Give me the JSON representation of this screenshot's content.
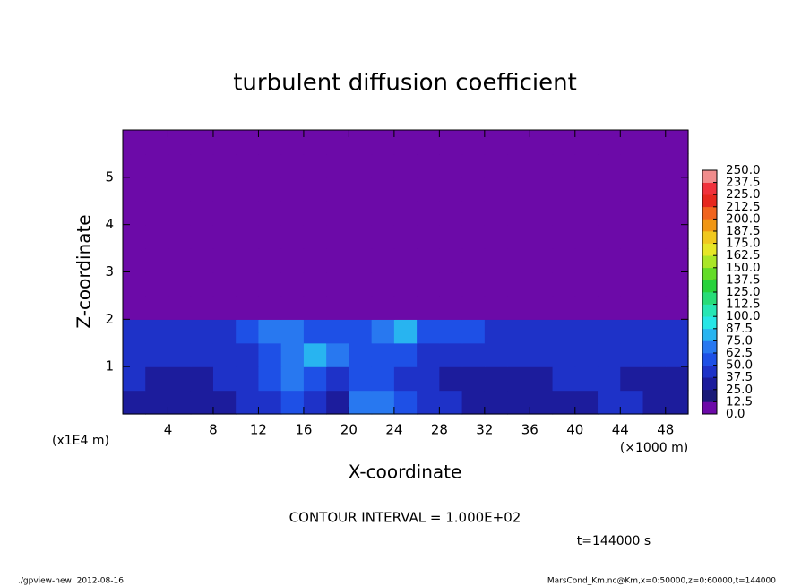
{
  "chart_data": {
    "type": "heatmap",
    "title": "turbulent diffusion coefficient",
    "xlabel": "X-coordinate",
    "ylabel": "Z-coordinate",
    "x_unit": "(×1000 m)",
    "y_unit": "(x1E4 m)",
    "xlim": [
      0,
      50
    ],
    "xticks": [
      4,
      8,
      12,
      16,
      20,
      24,
      28,
      32,
      36,
      40,
      44,
      48
    ],
    "ylim": [
      0,
      6
    ],
    "yticks": [
      1,
      2,
      3,
      4,
      5
    ],
    "values": [
      [
        35,
        30,
        30,
        32,
        35,
        38,
        45,
        50,
        40,
        35,
        70,
        65,
        55,
        45,
        40,
        35,
        30,
        30,
        30,
        35,
        30,
        45,
        40,
        35,
        35
      ],
      [
        40,
        35,
        35,
        35,
        38,
        45,
        55,
        65,
        55,
        45,
        50,
        50,
        45,
        40,
        35,
        35,
        35,
        35,
        35,
        40,
        40,
        40,
        35,
        35,
        35
      ],
      [
        40,
        45,
        40,
        38,
        40,
        45,
        55,
        70,
        80,
        70,
        55,
        60,
        55,
        45,
        40,
        40,
        40,
        40,
        40,
        40,
        40,
        40,
        40,
        40,
        40
      ],
      [
        45,
        45,
        42,
        40,
        45,
        55,
        65,
        70,
        60,
        55,
        55,
        70,
        75,
        60,
        50,
        50,
        45,
        45,
        45,
        45,
        45,
        45,
        45,
        45,
        45
      ],
      [
        0,
        0,
        0,
        0,
        0,
        0,
        0,
        0,
        0,
        0,
        0,
        0,
        0,
        0,
        0,
        0,
        0,
        0,
        0,
        0,
        0,
        0,
        0,
        0,
        0
      ],
      [
        0,
        0,
        0,
        0,
        0,
        0,
        0,
        0,
        0,
        0,
        0,
        0,
        0,
        0,
        0,
        0,
        0,
        0,
        0,
        0,
        0,
        0,
        0,
        0,
        0
      ],
      [
        0,
        0,
        0,
        0,
        0,
        0,
        0,
        0,
        0,
        0,
        0,
        0,
        0,
        0,
        0,
        0,
        0,
        0,
        0,
        0,
        0,
        0,
        0,
        0,
        0
      ],
      [
        0,
        0,
        0,
        0,
        0,
        0,
        0,
        0,
        0,
        0,
        0,
        0,
        0,
        0,
        0,
        0,
        0,
        0,
        0,
        0,
        0,
        0,
        0,
        0,
        0
      ],
      [
        0,
        0,
        0,
        0,
        0,
        0,
        0,
        0,
        0,
        0,
        0,
        0,
        0,
        0,
        0,
        0,
        0,
        0,
        0,
        0,
        0,
        0,
        0,
        0,
        0
      ],
      [
        0,
        0,
        0,
        0,
        0,
        0,
        0,
        0,
        0,
        0,
        0,
        0,
        0,
        0,
        0,
        0,
        0,
        0,
        0,
        0,
        0,
        0,
        0,
        0,
        0
      ],
      [
        0,
        0,
        0,
        0,
        0,
        0,
        0,
        0,
        0,
        0,
        0,
        0,
        0,
        0,
        0,
        0,
        0,
        0,
        0,
        0,
        0,
        0,
        0,
        0,
        0
      ],
      [
        0,
        0,
        0,
        0,
        0,
        0,
        0,
        0,
        0,
        0,
        0,
        0,
        0,
        0,
        0,
        0,
        0,
        0,
        0,
        0,
        0,
        0,
        0,
        0,
        0
      ]
    ],
    "levels": [
      {
        "value": 0,
        "label": "0.0"
      },
      12.5,
      {
        "value": 25,
        "label": "25.0"
      },
      37.5,
      {
        "value": 50,
        "label": "50.0"
      },
      62.5,
      {
        "value": 75,
        "label": "75.0"
      },
      87.5,
      {
        "value": 100,
        "label": "100.0"
      },
      112.5,
      {
        "value": 125,
        "label": "125.0"
      },
      137.5,
      {
        "value": 150,
        "label": "150.0"
      },
      162.5,
      {
        "value": 175,
        "label": "175.0"
      },
      187.5,
      {
        "value": 200,
        "label": "200.0"
      },
      212.5,
      {
        "value": 225,
        "label": "225.0"
      },
      237.5,
      {
        "value": 250,
        "label": "250.0"
      }
    ],
    "colors": [
      "#6c0aa8",
      "#1a1a78",
      "#1c1c9c",
      "#1e32c8",
      "#1e50e6",
      "#2878f0",
      "#28b4f0",
      "#28e6e6",
      "#28e6b4",
      "#28dc78",
      "#28d23c",
      "#64dc28",
      "#aae628",
      "#e6e628",
      "#f0c81e",
      "#f09614",
      "#f0641e",
      "#e6281e",
      "#f0323c",
      "#f08c8c"
    ],
    "annotation": "CONTOUR INTERVAL = 1.000E+02",
    "time_label": "t=144000 s",
    "footer_left": "./gpview-new  2012-08-16",
    "footer_right": "MarsCond_Km.nc@Km,x=0:50000,z=0:60000,t=144000"
  }
}
